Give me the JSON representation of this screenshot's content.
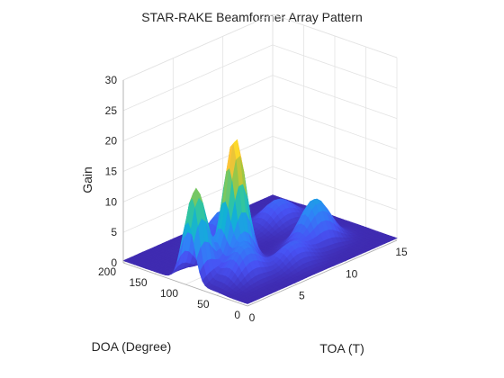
{
  "chart_data": {
    "type": "surface",
    "title": "STAR-RAKE Beamformer Array Pattern",
    "xlabel": "TOA (T)",
    "ylabel": "DOA (Degree)",
    "zlabel": "Gain",
    "xlim": [
      0,
      15
    ],
    "ylim": [
      0,
      200
    ],
    "zlim": [
      0,
      30
    ],
    "xticks": [
      0,
      5,
      10,
      15
    ],
    "yticks": [
      0,
      50,
      100,
      150,
      200
    ],
    "zticks": [
      0,
      5,
      10,
      15,
      20,
      25,
      30
    ],
    "grid": true,
    "colormap": "parula",
    "peaks": [
      {
        "toa": 4.2,
        "doa": 88,
        "gain": 21.0,
        "toa_width": 0.9,
        "doa_width": 11
      },
      {
        "toa": 0.8,
        "doa": 96,
        "gain": 15.0,
        "toa_width": 0.9,
        "doa_width": 11
      },
      {
        "toa": 10.5,
        "doa": 60,
        "gain": 7.5,
        "toa_width": 1.3,
        "doa_width": 14
      },
      {
        "toa": 6.5,
        "doa": 145,
        "gain": 5.5,
        "toa_width": 1.2,
        "doa_width": 14
      },
      {
        "toa": 3.0,
        "doa": 55,
        "gain": 5.5,
        "toa_width": 1.2,
        "doa_width": 14
      },
      {
        "toa": 11.5,
        "doa": 135,
        "gain": 4.0,
        "toa_width": 1.4,
        "doa_width": 16
      },
      {
        "toa": 7.0,
        "doa": 40,
        "gain": 3.5,
        "toa_width": 1.3,
        "doa_width": 14
      }
    ]
  }
}
